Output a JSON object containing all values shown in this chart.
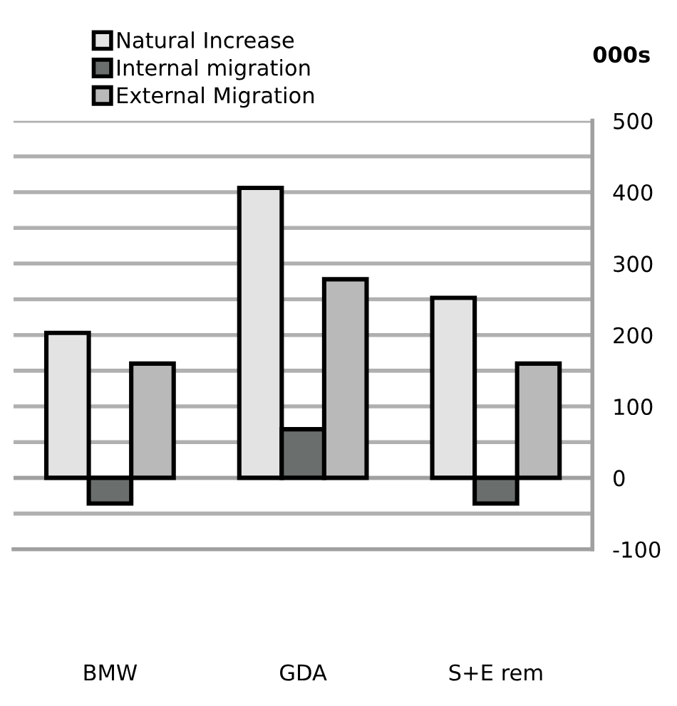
{
  "chart_data": {
    "type": "bar",
    "ylabel": "000s",
    "categories": [
      "BMW",
      "GDA",
      "S+E rem"
    ],
    "series": [
      {
        "name": "Natural Increase",
        "color": "#e3e3e3",
        "values": [
          203,
          406,
          252
        ]
      },
      {
        "name": "Internal migration",
        "color": "#6a6f6e",
        "values": [
          -36,
          68,
          -36
        ]
      },
      {
        "name": "External Migration",
        "color": "#b9b9b9",
        "values": [
          160,
          278,
          160
        ]
      }
    ],
    "ylim": [
      -100,
      500
    ],
    "yticks": [
      -100,
      {
        "value": -50,
        "label": null
      },
      0,
      {
        "value": 50,
        "label": null
      },
      100,
      {
        "value": 150,
        "label": null
      },
      200,
      {
        "value": 250,
        "label": null
      },
      300,
      {
        "value": 350,
        "label": null
      },
      400,
      {
        "value": 450,
        "label": null
      },
      500
    ],
    "grid": "y",
    "legend": "top"
  }
}
